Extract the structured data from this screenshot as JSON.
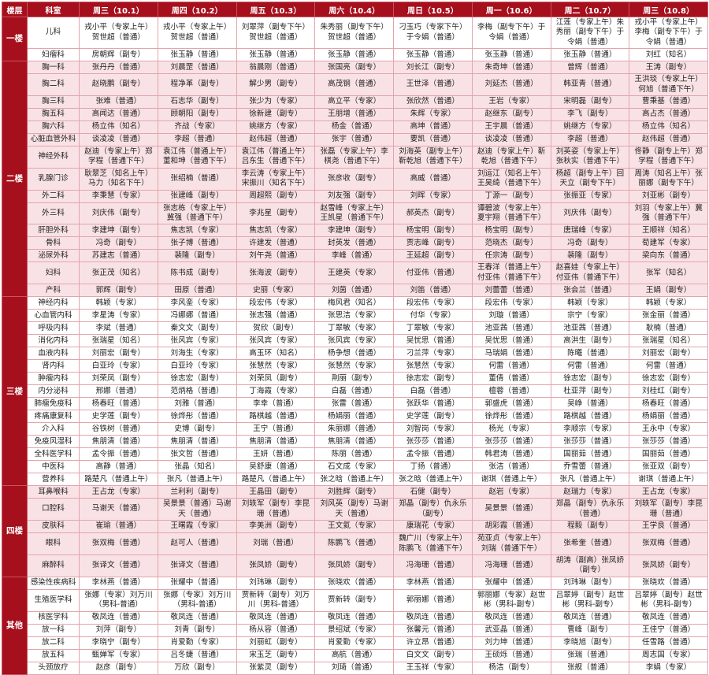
{
  "header": {
    "floor": "楼层",
    "dept": "科室",
    "days": [
      "周三（10.1）",
      "周四（10.2）",
      "周五（10.3）",
      "周六（10.4）",
      "周日（10.5）",
      "周一（10.6）",
      "周二（10.7）",
      "周三（10.8）"
    ]
  },
  "colors": {
    "header_bg": "#a60f1c",
    "pink_row": "#f9e2e5",
    "border": "#e2a5ab"
  },
  "floors": [
    {
      "name": "一楼",
      "shade": "white",
      "depts": [
        {
          "name": "儿科",
          "cells": [
            "戎小平（专家上午）贺世超（普通）",
            "戎小平（专家上午）贺世超（普通）",
            "刘翠萍（副专下午）贺世超（普通）",
            "朱秀丽（副专下午）贺世超（普通）",
            "刁玉巧（专家下午）于令娟（普通）",
            "李梅（副专下午）于令娟（普通）",
            "江莲（专家上午）朱秀丽（副专下午）于令娟（普通）",
            "戎小平（专家上午）李梅（副专下午）于令娟（普通）"
          ]
        },
        {
          "name": "妇瘤科",
          "cells": [
            "房朝辉（副专）",
            "张玉静（普通）",
            "张玉静（普通）",
            "张玉静（普通）",
            "张玉静（普通）",
            "张玉静（普通）",
            "张玉静（普通）",
            "刘红（知名）"
          ]
        }
      ]
    },
    {
      "name": "二楼",
      "shade": "pink",
      "depts": [
        {
          "name": "胸一科",
          "cells": [
            "张丹丹（普通）",
            "刘晨罡（普通）",
            "翁晨刚（普通）",
            "张国亮（副专）",
            "刘长江（副专）",
            "朱奇坤（普通）",
            "曾辉（普通）",
            "王涛（副专）"
          ]
        },
        {
          "name": "胸二科",
          "cells": [
            "赵晓鹏（副专）",
            "程净革（副专）",
            "解少男（副专）",
            "高茂钢（普通）",
            "王世泽（普通）",
            "刘延杰（普通）",
            "韩亚青（普通）",
            "王洪琰（专家上午）何旭（普通下午）"
          ]
        },
        {
          "name": "胸三科",
          "cells": [
            "张难（普通）",
            "石志华（副专）",
            "张少为（专家）",
            "高立平（专家）",
            "张欣然（普通）",
            "王岩（专家）",
            "宋明磊（副专）",
            "曹秉基（普通）"
          ]
        },
        {
          "name": "胸五科",
          "cells": [
            "高闻达（普通）",
            "顾朝阳（副专）",
            "徐新建（副专）",
            "王朋增（普通）",
            "朱辉（专家）",
            "赵继东（副专）",
            "李飞（副专）",
            "高占杰（普通）"
          ]
        },
        {
          "name": "胸六科",
          "cells": [
            "杨立伟（知名）",
            "齐战（专家）",
            "姚继方（专家）",
            "杨金（普通）",
            "高坤（普通）",
            "王宇晨（普通）",
            "姚继方（专家）",
            "杨立伟（知名）"
          ]
        },
        {
          "name": "心脏血管外科",
          "cells": [
            "谈凌凌（普通）",
            "李超（普通）",
            "赵伟超（普通）",
            "张宇（普通）",
            "要凯（普通）",
            "谈凌凌（普通）",
            "李超（普通）",
            "赵伟超（普通）"
          ]
        },
        {
          "name": "神经外科",
          "cells": [
            "赵迪（专家上午）郑学程（普通下午）",
            "袁江伟（普通上午）董和坤（普通下午）",
            "袁江伟（普通上午）吕东生（普通下午）",
            "张磊（专家上午）李棋尧（普通下午）",
            "刘海英（副专上午）靳乾旭（普通下午）",
            "赵迪（专家上午）靳乾旭（普通下午）",
            "刘英姿（专家上午）张秋实（普通下午）",
            "佟静（副专上午）郑学程（普通下午）"
          ]
        },
        {
          "name": "乳腺门诊",
          "cells": [
            "耿翠芝（知名上午）马力（知名下午）",
            "张绍楠（普通）",
            "李云涛（专家上午）宋振川（知名下午）",
            "张彦收（副专）",
            "高威（普通）",
            "刘运江（知名上午）王昊绮（普通下午）",
            "杨超（副专上午）回天立（副专下午）",
            "周涛（知名上午）张丽娜（副专下午）"
          ]
        },
        {
          "name": "外二科",
          "cells": [
            "李秉慧（专家）",
            "张建峰（副专）",
            "周超熙（副专）",
            "刘友强（副专）",
            "刘晖（专家）",
            "丁源一（副专）",
            "张振亚（专家）",
            "刘亚彬（副专）"
          ]
        },
        {
          "name": "外三科",
          "cells": [
            "刘庆伟（副专）",
            "张志栋（专家上午）冀强（普通下午）",
            "李兆星（副专）",
            "赵雪峰（专家上午）王凯星（普通下午）",
            "郝英杰（副专）",
            "谭碧波（专家上午）夏宇翔（普通下午）",
            "刘庆伟（副专）",
            "刘羽（专家上午）冀强（普通下午）"
          ]
        },
        {
          "name": "肝胆外科",
          "cells": [
            "李建坤（副专）",
            "焦志凯（专家）",
            "焦志凯（专家）",
            "李建坤（副专）",
            "杨宝明（副专）",
            "杨宝明（副专）",
            "唐瑞峰（专家）",
            "王顺祥（知名）"
          ]
        },
        {
          "name": "骨科",
          "cells": [
            "冯奇（副专）",
            "张子博（普通）",
            "许建发（普通）",
            "封英发（普通）",
            "贾志峰（副专）",
            "范晓杰（副专）",
            "冯奇（副专）",
            "荀建军（专家）"
          ]
        },
        {
          "name": "泌尿外科",
          "cells": [
            "苏建志（普通）",
            "裴隆（副专）",
            "刘午尧（普通）",
            "李峰（普通）",
            "王延超（副专）",
            "任宗涛（副专）",
            "裴隆（副专）",
            "梁向东（普通）"
          ]
        },
        {
          "name": "妇科",
          "cells": [
            "张正茂（知名）",
            "陈书成（副专）",
            "张海波（副专）",
            "王建英（专家）",
            "付亚伟（普通）",
            "王春洋（普通上午）付亚伟（普通下午）",
            "赵喜娃（专家上午）付亚伟（普通下午）",
            "张军（知名）"
          ]
        },
        {
          "name": "产科",
          "cells": [
            "郭辉（副专）",
            "田原（普通）",
            "史丽（专家）",
            "刘茵（普通）",
            "刘笛（普通）",
            "刘蕾蕾（普通）",
            "张会兰（普通）",
            "王娟（副专）"
          ]
        }
      ]
    },
    {
      "name": "三楼",
      "shade": "white",
      "depts": [
        {
          "name": "神经内科",
          "cells": [
            "韩颖（专家）",
            "李风銮（专家）",
            "段宏伟（专家）",
            "梅风君（知名）",
            "段宏伟（专家）",
            "段宏伟（专家）",
            "韩颖（专家）",
            "韩颖（专家）"
          ]
        },
        {
          "name": "心血管内科",
          "cells": [
            "李星涛（专家）",
            "冯娜娜（普通）",
            "张志强（普通）",
            "张思洁（专家）",
            "付华（专家）",
            "刘璇（普通）",
            "宗宁（专家）",
            "张金丽（普通）"
          ]
        },
        {
          "name": "呼吸内科",
          "cells": [
            "李斌（普通）",
            "秦文文（副专）",
            "贺欣（副专）",
            "丁翠敏（专家）",
            "丁翠敏（专家）",
            "池亚茜（普通）",
            "池亚茜（普通）",
            "耿楠（普通）"
          ]
        },
        {
          "name": "消化内科",
          "cells": [
            "张瑞星（知名）",
            "张风宾（专家）",
            "张风宾（专家）",
            "张风宾（专家）",
            "吴忧思（普通）",
            "吴忧思（普通）",
            "高洪生（副专）",
            "张瑞星（知名）"
          ]
        },
        {
          "name": "血液内科",
          "cells": [
            "刘丽宏（副专）",
            "刘海生（专家）",
            "高玉环（知名）",
            "杨争想（普通）",
            "刁兰萍（专家）",
            "马瑞娟（普通）",
            "陈曦（普通）",
            "刘丽宏（副专）"
          ]
        },
        {
          "name": "肾内科",
          "cells": [
            "白亚玲（专家）",
            "白亚玲（专家）",
            "张慧然（专家）",
            "张慧然（专家）",
            "张慧然（专家）",
            "何雷（普通）",
            "何雷（普通）",
            "何雷（普通）"
          ]
        },
        {
          "name": "肿瘤内科",
          "cells": [
            "刘荣凤（副专）",
            "徐志宏（副专）",
            "刘荣凤（副专）",
            "荆丽（副专）",
            "徐志宏（副专）",
            "董倩（普通）",
            "徐志宏（副专）",
            "徐志宏（副专）"
          ]
        },
        {
          "name": "内分泌科",
          "cells": [
            "邢娜（普通）",
            "范炳格（普通）",
            "丁海霞（专家）",
            "白磊（普通）",
            "白磊（普通）",
            "檀蓉（普通）",
            "杜亚萍（副专）",
            "刘桂红（副专）"
          ]
        },
        {
          "name": "肺瘤免疫科",
          "cells": [
            "杨春旺（普通）",
            "刘雅（普通）",
            "李幸（普通）",
            "张雷（普通）",
            "张跃华（普通）",
            "郭盛虎（普通）",
            "吴峥（普通）",
            "杨春旺（普通）"
          ]
        },
        {
          "name": "疼痛康复科",
          "cells": [
            "史学莲（副专）",
            "徐烨彤（普通）",
            "路棋越（普通）",
            "杨娟丽（普通）",
            "史学莲（副专）",
            "徐烨彤（普通）",
            "路棋越（普通）",
            "杨娟丽（普通）"
          ]
        },
        {
          "name": "介入科",
          "cells": [
            "谷铁树（普通）",
            "史博（副专）",
            "王宁（普通）",
            "朱丽娜（普通）",
            "刘智岗（专家）",
            "杨光（专家）",
            "李顺宗（专家）",
            "王永中（专家）"
          ]
        },
        {
          "name": "免疫风湿科",
          "cells": [
            "焦朋清（普通）",
            "焦朋清（普通）",
            "焦朋清（普通）",
            "焦朋清（普通）",
            "张莎莎（普通）",
            "张莎莎（普通）",
            "张莎莎（普通）",
            "张莎莎（普通）"
          ]
        },
        {
          "name": "全科医学科",
          "cells": [
            "孟令振（普通）",
            "张文哲（普通）",
            "王妍（普通）",
            "陈丽（普通）",
            "孟令振（普通）",
            "韩君涛（普通）",
            "国丽茹（普通）",
            "国丽茹（普通）"
          ]
        },
        {
          "name": "中医科",
          "cells": [
            "高静（普通）",
            "张晶（知名）",
            "吴舒康（普通）",
            "石文成（专家）",
            "丁扬（普通）",
            "张洁（普通）",
            "乔雪蕾（普通）",
            "张亚双（副专）"
          ]
        },
        {
          "name": "营养科",
          "cells": [
            "路楚凡（普通上午）",
            "张凡（普通上午）",
            "路楚凡（普通上午）",
            "张之晗（普通上午）",
            "张之晗（普通上午）",
            "谢琪（普通上午）",
            "张凡（普通上午）",
            "谢琪（普通上午）"
          ]
        }
      ]
    },
    {
      "name": "四楼",
      "shade": "pink",
      "depts": [
        {
          "name": "耳鼻喉科",
          "cells": [
            "王占龙（专家）",
            "兰利利（副专）",
            "王晶田（副专）",
            "刘胜辉（副专）",
            "石健（副专）",
            "赵岩（专家）",
            "赵瑞力（专家）",
            "王占龙（专家）"
          ]
        },
        {
          "name": "口腔科",
          "cells": [
            "马谢天（普通）",
            "吴景景（普通）马谢天（普通）",
            "刘轶军（副专）李昆珊（普通）",
            "刘风英（副专）马谢天（普通）",
            "郑晶（副专）仇永乐（副专）",
            "吴景景（普通）",
            "郑晶（副专）仇永乐（普通）",
            "刘轶军（副专）李昆珊（普通）"
          ]
        },
        {
          "name": "皮肤科",
          "cells": [
            "崔瑜（普通）",
            "王曙霞（专家）",
            "李美洲（副专）",
            "王文氦（专家）",
            "康瑞花（专家）",
            "胡彩霞（普通）",
            "程毅（副专）",
            "王学良（普通）"
          ]
        },
        {
          "name": "眼科",
          "cells": [
            "张双梅（普通）",
            "赵可人（普通）",
            "刘瑞（普通）",
            "陈鹏飞（普通）",
            "魏广川（专家上午）陈鹏飞（普通下午）",
            "苑亚贞（专家上午）刘瑞（普通下午）",
            "张希奎（普通）",
            "张双梅（普通）"
          ]
        },
        {
          "name": "麻醉科",
          "cells": [
            "张译文（普通）",
            "张译文（普通）",
            "张凤娇（副专）",
            "张凤娇（副专）",
            "冯海珊（普通）",
            "冯海珊（普通）",
            "胡涛（副高）张凤娇（副专）",
            "张凤娇（副专）"
          ]
        }
      ]
    },
    {
      "name": "其他",
      "shade": "white",
      "depts": [
        {
          "name": "感染性疾病科",
          "cells": [
            "李林燕（普通）",
            "张耀中（普通）",
            "刘玮琳（副专）",
            "张晓欢（普通）",
            "李林燕（普通）",
            "张耀中（普通）",
            "刘玮琳（副专）",
            "张晓欢（普通）"
          ]
        },
        {
          "name": "生殖医学科",
          "cells": [
            "张娜（专家）刘万川（男科-普通）",
            "张娜（专家）刘万川（男科-普通）",
            "贾新转（副专）刘万川（男科-普通）",
            "贾新转（副专）",
            "郭丽娜（普通）",
            "郭丽娜（专家）赵世彬（男科-副专）",
            "吕翠婷（副专）赵世彬（男科-副专）",
            "吕翠婷（副专）赵世彬（男科-副专）"
          ]
        },
        {
          "name": "核医学科",
          "cells": [
            "敬凤连（普通）",
            "敬凤连（普通）",
            "敬凤连（普通）",
            "敬凤连（普通）",
            "敬凤连（普通）",
            "敬凤连（普通）",
            "敬凤连（普通）",
            "敬凤连（普通）"
          ]
        },
        {
          "name": "放一科",
          "cells": [
            "刘萍（副专）",
            "刘青（副专）",
            "杨从容（普通）",
            "景绍斌（专家）",
            "张馨元（普通）",
            "武亚晶（普通）",
            "曹峰（副专）",
            "王佳宁（普通）"
          ]
        },
        {
          "name": "放二科",
          "cells": [
            "李晓宁（副专）",
            "肖爱勤（专家）",
            "刘丽虹（副专）",
            "肖爱勤（专家）",
            "许立昂（普通）",
            "刘力坤（普通）",
            "李晓旭（副专）",
            "任雪路（普通）"
          ]
        },
        {
          "name": "放五科",
          "cells": [
            "甄婵军（专家）",
            "吕冬婕（普通）",
            "宋玉芝（副专）",
            "高航（普通）",
            "白文文（副专）",
            "王硕烁（普通）",
            "张瑞（普通）",
            "周志国（专家）"
          ]
        },
        {
          "name": "头颈放疗",
          "cells": [
            "赵彦（副专）",
            "万欣（副专）",
            "张紫灵（副专）",
            "刘琦（普通）",
            "王玉祥（专家）",
            "杨洁（副专）",
            "张舰（普通）",
            "李娟（专家）"
          ]
        }
      ]
    }
  ]
}
